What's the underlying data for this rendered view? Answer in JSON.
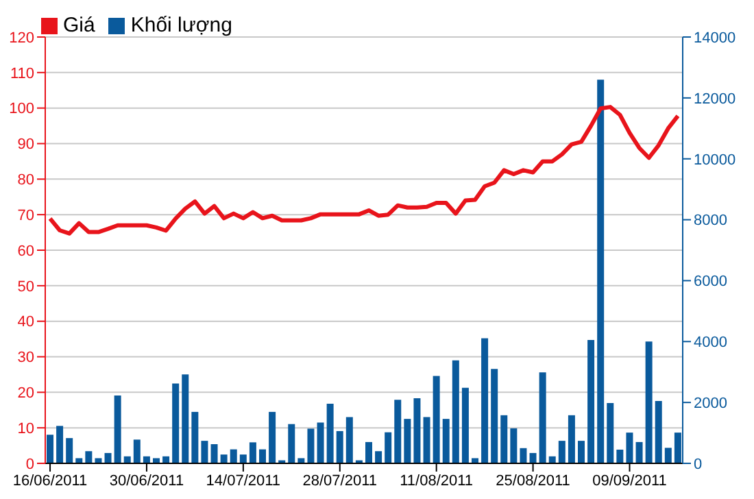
{
  "chart_data": {
    "type": "line",
    "categories": [
      "16/06/2011",
      null,
      null,
      null,
      null,
      null,
      null,
      null,
      null,
      null,
      "30/06/2011",
      null,
      null,
      null,
      null,
      null,
      null,
      null,
      null,
      null,
      "14/07/2011",
      null,
      null,
      null,
      null,
      null,
      null,
      null,
      null,
      null,
      "28/07/2011",
      null,
      null,
      null,
      null,
      null,
      null,
      null,
      null,
      null,
      "11/08/2011",
      null,
      null,
      null,
      null,
      null,
      null,
      null,
      null,
      null,
      "25/08/2011",
      null,
      null,
      null,
      null,
      null,
      null,
      null,
      null,
      null,
      "09/09/2011",
      null,
      null,
      null,
      null,
      null
    ],
    "series": [
      {
        "name": "Giá",
        "color": "#e8141b",
        "values": [
          68.9,
          65.6,
          64.7,
          67.6,
          65.1,
          65.1,
          66,
          67,
          67,
          67,
          67,
          66.4,
          65.5,
          68.9,
          71.7,
          73.7,
          70.3,
          72.4,
          69,
          70.3,
          69,
          70.7,
          69,
          69.7,
          68.4,
          68.4,
          68.4,
          69,
          70.1,
          70.1,
          70.1,
          70.1,
          70.1,
          71.2,
          69.7,
          70,
          72.6,
          72,
          72,
          72.2,
          73.3,
          73.3,
          70.3,
          74,
          74.2,
          78,
          79,
          82.5,
          81.4,
          82.5,
          81.9,
          85,
          85,
          87,
          89.8,
          90.5,
          95,
          99.9,
          100.3,
          98.1,
          93,
          88.8,
          86,
          89.5,
          94.3,
          97.8
        ]
      },
      {
        "name": "Khối lượng",
        "type": "bar",
        "axis": "y2",
        "color": "#0a5a9c",
        "values": [
          940,
          1230,
          830,
          170,
          400,
          170,
          340,
          2230,
          230,
          780,
          230,
          170,
          230,
          2620,
          2920,
          1690,
          740,
          630,
          290,
          460,
          290,
          690,
          460,
          1690,
          100,
          1290,
          170,
          1140,
          1340,
          1960,
          1060,
          1520,
          100,
          700,
          400,
          1020,
          2090,
          1460,
          2140,
          1520,
          2870,
          1460,
          3380,
          2480,
          170,
          4110,
          3100,
          1580,
          1150,
          500,
          340,
          2990,
          230,
          740,
          1580,
          740,
          4050,
          12600,
          1980,
          450,
          1010,
          700,
          4000,
          2050,
          510,
          1010
        ]
      }
    ],
    "ylim": [
      0,
      120
    ],
    "yticks": [
      0,
      10,
      20,
      30,
      40,
      50,
      60,
      70,
      80,
      90,
      100,
      110,
      120
    ],
    "y2lim": [
      0,
      14000
    ],
    "y2ticks": [
      0,
      2000,
      4000,
      6000,
      8000,
      10000,
      12000,
      14000
    ],
    "grid": "y",
    "legend": "top left",
    "marker": "none"
  }
}
